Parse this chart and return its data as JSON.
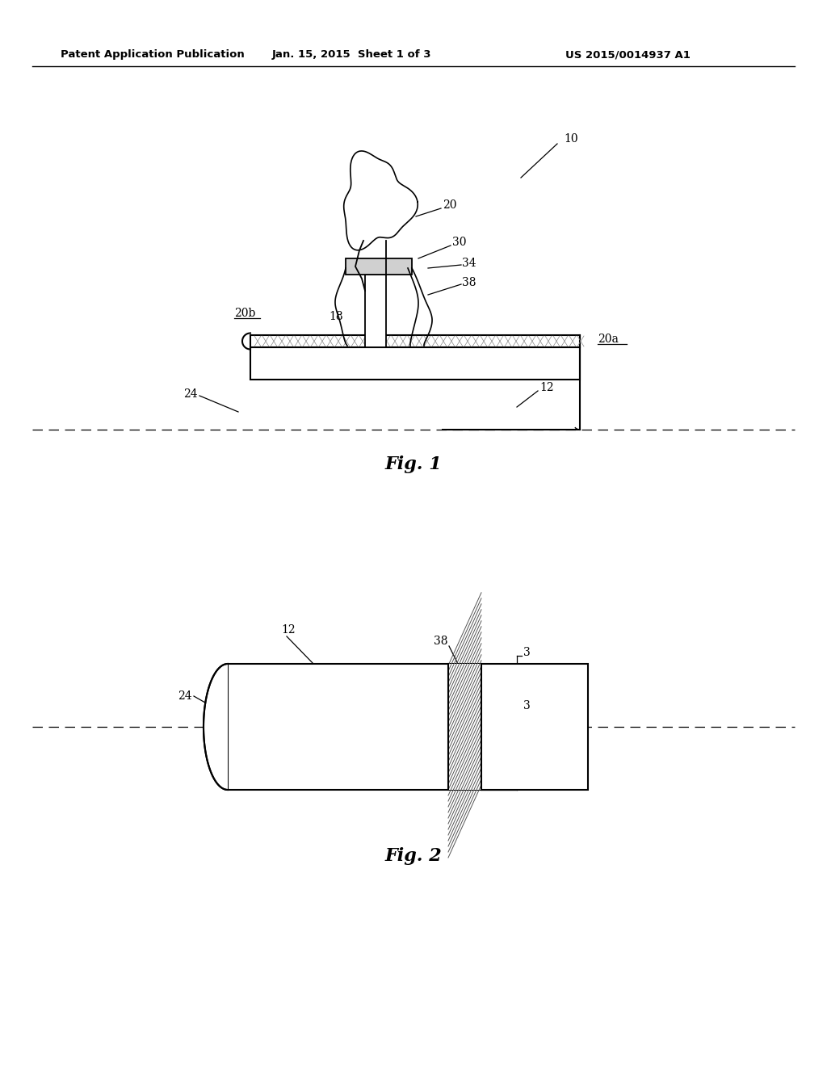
{
  "bg_color": "#ffffff",
  "header_left": "Patent Application Publication",
  "header_center": "Jan. 15, 2015  Sheet 1 of 3",
  "header_right": "US 2015/0014937 A1",
  "fig1_label": "Fig. 1",
  "fig2_label": "Fig. 2"
}
